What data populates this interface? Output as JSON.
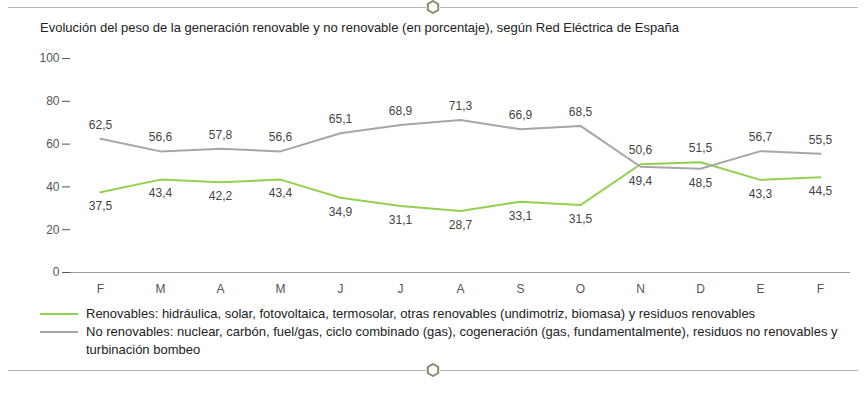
{
  "chart_data": {
    "type": "line",
    "title": "Evolución del peso de la generación renovable y no renovable (en porcentaje), según Red Eléctrica de España",
    "categories": [
      "F",
      "M",
      "A",
      "M",
      "J",
      "J",
      "A",
      "S",
      "O",
      "N",
      "D",
      "E",
      "F"
    ],
    "series": [
      {
        "name": "Renovables: hidráulica, solar, fotovoltaica, termosolar, otras renovables (undimotriz, biomasa) y residuos renovables",
        "color": "#92d050",
        "values": [
          37.5,
          43.4,
          42.2,
          43.4,
          34.9,
          31.1,
          28.7,
          33.1,
          31.5,
          50.6,
          51.5,
          43.3,
          44.5
        ],
        "value_labels": [
          "37,5",
          "43,4",
          "42,2",
          "43,4",
          "34,9",
          "31,1",
          "28,7",
          "33,1",
          "31,5",
          "50,6",
          "51,5",
          "43,3",
          "44,5"
        ]
      },
      {
        "name": "No renovables: nuclear, carbón, fuel/gas, ciclo combinado (gas), cogeneración (gas, fundamentalmente), residuos no renovables y turbinación bombeo",
        "color": "#a6a6a6",
        "values": [
          62.5,
          56.6,
          57.8,
          56.6,
          65.1,
          68.9,
          71.3,
          66.9,
          68.5,
          49.4,
          48.5,
          56.7,
          55.5
        ],
        "value_labels": [
          "62,5",
          "56,6",
          "57,8",
          "56,6",
          "65,1",
          "68,9",
          "71,3",
          "66,9",
          "68,5",
          "49,4",
          "48,5",
          "56,7",
          "55,5"
        ]
      }
    ],
    "ylim": [
      0,
      100
    ],
    "yticks": [
      0,
      20,
      40,
      60,
      80,
      100
    ],
    "grid": false,
    "data_labels": true,
    "legend": "bottom"
  }
}
